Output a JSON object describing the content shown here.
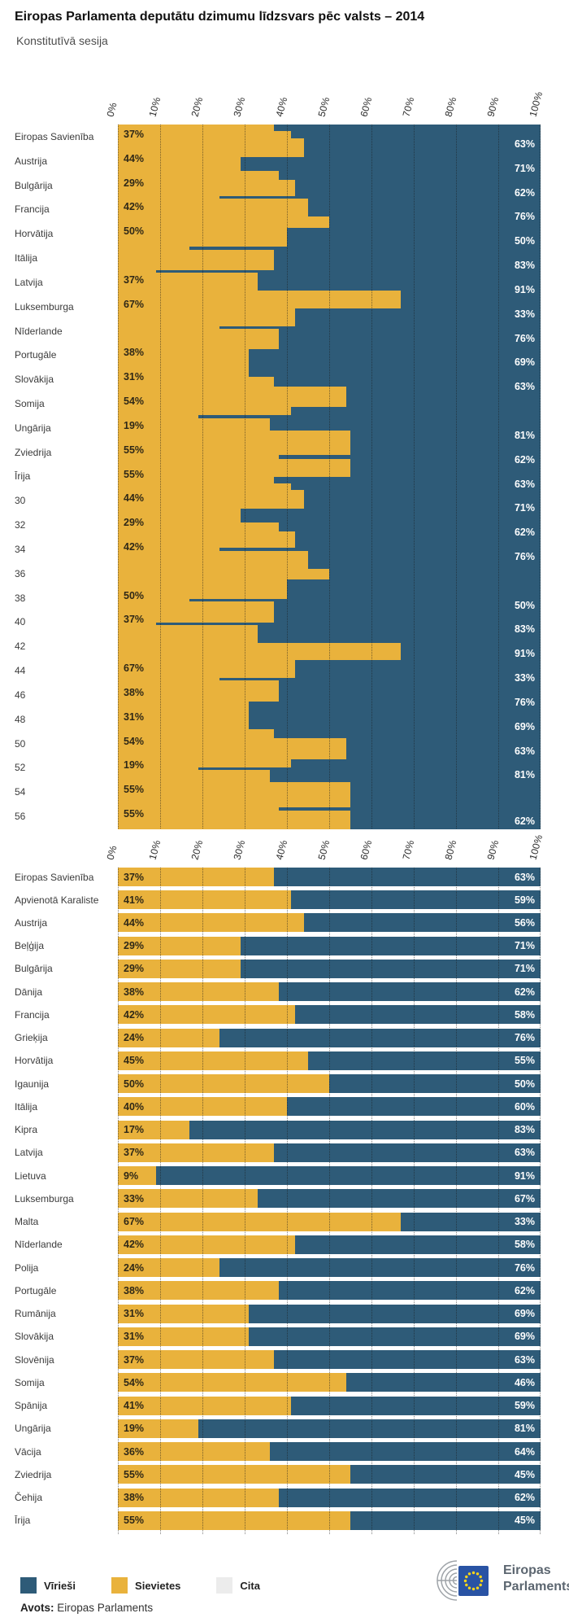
{
  "header": {
    "title": "Eiropas Parlamenta deputātu dzimumu līdzsvars pēc valsts – 2014",
    "subtitle": "Konstitutīvā sesija"
  },
  "colors": {
    "men": "#2e5b78",
    "women": "#e9b23c",
    "other": "#ececec",
    "left_value_text": "#2f2817",
    "right_value_text": "#ffffff",
    "logo_blue": "#2953a4",
    "logo_star": "#ffd617"
  },
  "axis": {
    "ticks": [
      "0%",
      "10%",
      "20%",
      "30%",
      "40%",
      "50%",
      "60%",
      "70%",
      "80%",
      "90%",
      "100%"
    ]
  },
  "chart_data": [
    {
      "type": "bar",
      "stacked": true,
      "orientation": "horizontal",
      "series_names": [
        "Sievietes",
        "Vīrieši"
      ],
      "axis_labels": [
        "Eiropas Savienība",
        "Austrija",
        "Bulgārija",
        "Francija",
        "Horvātija",
        "Itālija",
        "Latvija",
        "Luksemburga",
        "Nīderlande",
        "Portugāle",
        "Slovākija",
        "Somija",
        "Ungārija",
        "Zviedrija",
        "Īrija",
        "30",
        "32",
        "34",
        "36",
        "38",
        "40",
        "42",
        "44",
        "46",
        "48",
        "50",
        "52",
        "54",
        "56"
      ],
      "values_women_pct": [
        37,
        41,
        44,
        29,
        29,
        38,
        42,
        24,
        45,
        50,
        40,
        17,
        37,
        9,
        33,
        67,
        42,
        24,
        38,
        31,
        31,
        37,
        54,
        41,
        19,
        36,
        55,
        38,
        55
      ],
      "repeat": 2,
      "row_weights": [
        10,
        10,
        27,
        10,
        10,
        13,
        24,
        4,
        26,
        16,
        28,
        4,
        30,
        4,
        26,
        25,
        26,
        4,
        30,
        10,
        30,
        14,
        30,
        12,
        4,
        18,
        36,
        5,
        26
      ],
      "left_labels": [
        [
          0,
          "37%"
        ],
        [
          1,
          "44%"
        ],
        [
          2,
          "29%"
        ],
        [
          3,
          "42%"
        ],
        [
          4,
          "50%"
        ],
        [
          6,
          "37%"
        ],
        [
          7,
          "67%"
        ],
        [
          9,
          "38%"
        ],
        [
          10,
          "31%"
        ],
        [
          11,
          "54%"
        ],
        [
          12,
          "19%"
        ],
        [
          13,
          "55%"
        ],
        [
          14,
          "55%"
        ],
        [
          15,
          "44%"
        ],
        [
          16,
          "29%"
        ],
        [
          17,
          "42%"
        ],
        [
          19,
          "50%"
        ],
        [
          20,
          "37%"
        ],
        [
          22,
          "67%"
        ],
        [
          23,
          "38%"
        ],
        [
          24,
          "31%"
        ],
        [
          25,
          "54%"
        ],
        [
          26,
          "19%"
        ],
        [
          27,
          "55%"
        ],
        [
          28,
          "55%"
        ]
      ],
      "right_labels": [
        [
          0,
          "63%"
        ],
        [
          1,
          "71%"
        ],
        [
          2,
          "62%"
        ],
        [
          3,
          "76%"
        ],
        [
          4,
          "50%"
        ],
        [
          5,
          "83%"
        ],
        [
          6,
          "91%"
        ],
        [
          7,
          "33%"
        ],
        [
          8,
          "76%"
        ],
        [
          9,
          "69%"
        ],
        [
          10,
          "63%"
        ],
        [
          12,
          "81%"
        ],
        [
          13,
          "62%"
        ],
        [
          14,
          "63%"
        ],
        [
          15,
          "71%"
        ],
        [
          16,
          "62%"
        ],
        [
          17,
          "76%"
        ],
        [
          19,
          "50%"
        ],
        [
          20,
          "83%"
        ],
        [
          21,
          "91%"
        ],
        [
          22,
          "33%"
        ],
        [
          23,
          "76%"
        ],
        [
          24,
          "69%"
        ],
        [
          25,
          "63%"
        ],
        [
          26,
          "81%"
        ],
        [
          28,
          "62%"
        ]
      ],
      "xlim": [
        0,
        100
      ],
      "grid": "dotted-vertical-10pct"
    },
    {
      "type": "bar",
      "stacked": true,
      "orientation": "horizontal",
      "series_names": [
        "Sievietes",
        "Vīrieši"
      ],
      "xlim": [
        0,
        100
      ],
      "grid": "dotted-vertical-10pct",
      "rows": [
        {
          "country": "Eiropas Savienība",
          "women": 37,
          "men": 63,
          "women_label": "37%",
          "men_label": "63%"
        },
        {
          "country": "Apvienotā Karaliste",
          "women": 41,
          "men": 59,
          "women_label": "41%",
          "men_label": "59%"
        },
        {
          "country": "Austrija",
          "women": 44,
          "men": 56,
          "women_label": "44%",
          "men_label": "56%"
        },
        {
          "country": "Beļģija",
          "women": 29,
          "men": 71,
          "women_label": "29%",
          "men_label": "71%"
        },
        {
          "country": "Bulgārija",
          "women": 29,
          "men": 71,
          "women_label": "29%",
          "men_label": "71%"
        },
        {
          "country": "Dānija",
          "women": 38,
          "men": 62,
          "women_label": "38%",
          "men_label": "62%"
        },
        {
          "country": "Francija",
          "women": 42,
          "men": 58,
          "women_label": "42%",
          "men_label": "58%"
        },
        {
          "country": "Grieķija",
          "women": 24,
          "men": 76,
          "women_label": "24%",
          "men_label": "76%"
        },
        {
          "country": "Horvātija",
          "women": 45,
          "men": 55,
          "women_label": "45%",
          "men_label": "55%"
        },
        {
          "country": "Igaunija",
          "women": 50,
          "men": 50,
          "women_label": "50%",
          "men_label": "50%"
        },
        {
          "country": "Itālija",
          "women": 40,
          "men": 60,
          "women_label": "40%",
          "men_label": "60%"
        },
        {
          "country": "Kipra",
          "women": 17,
          "men": 83,
          "women_label": "17%",
          "men_label": "83%"
        },
        {
          "country": "Latvija",
          "women": 37,
          "men": 63,
          "women_label": "37%",
          "men_label": "63%"
        },
        {
          "country": "Lietuva",
          "women": 9,
          "men": 91,
          "women_label": "9%",
          "men_label": "91%"
        },
        {
          "country": "Luksemburga",
          "women": 33,
          "men": 67,
          "women_label": "33%",
          "men_label": "67%"
        },
        {
          "country": "Malta",
          "women": 67,
          "men": 33,
          "women_label": "67%",
          "men_label": "33%"
        },
        {
          "country": "Nīderlande",
          "women": 42,
          "men": 58,
          "women_label": "42%",
          "men_label": "58%"
        },
        {
          "country": "Polija",
          "women": 24,
          "men": 76,
          "women_label": "24%",
          "men_label": "76%"
        },
        {
          "country": "Portugāle",
          "women": 38,
          "men": 62,
          "women_label": "38%",
          "men_label": "62%"
        },
        {
          "country": "Rumānija",
          "women": 31,
          "men": 69,
          "women_label": "31%",
          "men_label": "69%"
        },
        {
          "country": "Slovākija",
          "women": 31,
          "men": 69,
          "women_label": "31%",
          "men_label": "69%"
        },
        {
          "country": "Slovēnija",
          "women": 37,
          "men": 63,
          "women_label": "37%",
          "men_label": "63%"
        },
        {
          "country": "Somija",
          "women": 54,
          "men": 46,
          "women_label": "54%",
          "men_label": "46%"
        },
        {
          "country": "Spānija",
          "women": 41,
          "men": 59,
          "women_label": "41%",
          "men_label": "59%"
        },
        {
          "country": "Ungārija",
          "women": 19,
          "men": 81,
          "women_label": "19%",
          "men_label": "81%"
        },
        {
          "country": "Vācija",
          "women": 36,
          "men": 64,
          "women_label": "36%",
          "men_label": "64%"
        },
        {
          "country": "Zviedrija",
          "women": 55,
          "men": 45,
          "women_label": "55%",
          "men_label": "45%"
        },
        {
          "country": "Čehija",
          "women": 38,
          "men": 62,
          "women_label": "38%",
          "men_label": "62%"
        },
        {
          "country": "Īrija",
          "women": 55,
          "men": 45,
          "women_label": "55%",
          "men_label": "45%"
        }
      ]
    }
  ],
  "legend": {
    "items": [
      {
        "label": "Vīrieši",
        "color_key": "men"
      },
      {
        "label": "Sievietes",
        "color_key": "women"
      },
      {
        "label": "Cita",
        "color_key": "other"
      }
    ]
  },
  "footer": {
    "source_prefix": "Avots:",
    "source": "Eiropas Parlaments"
  },
  "logo": {
    "line1": "Eiropas",
    "line2": "Parlaments"
  }
}
